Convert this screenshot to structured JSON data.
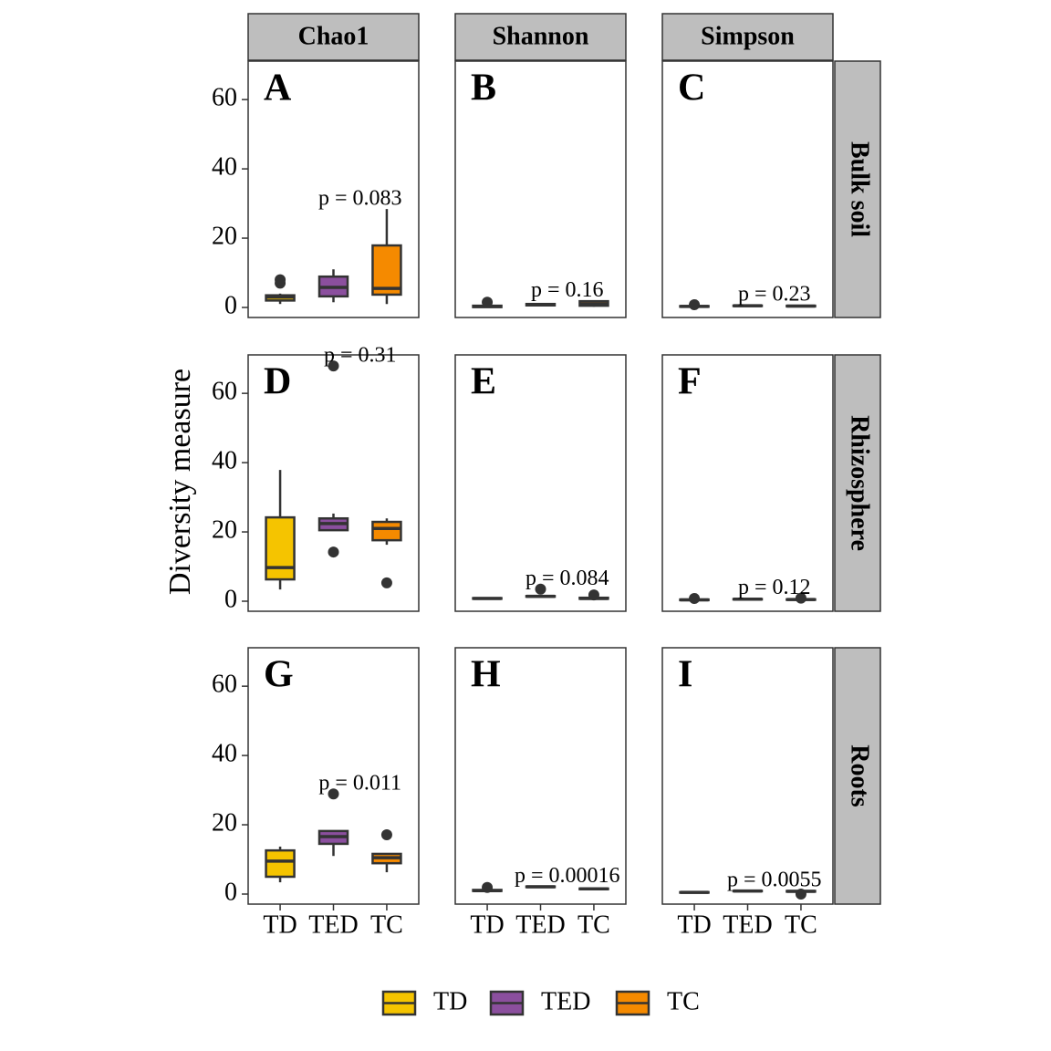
{
  "chart_data": {
    "type": "box",
    "y_label": "Diversity measure",
    "ylim": [
      -2.9,
      71.1
    ],
    "yticks": [
      0,
      20,
      40,
      60
    ],
    "columns": [
      "Chao1",
      "Shannon",
      "Simpson"
    ],
    "rows": [
      "Bulk soil",
      "Rhizosphere",
      "Roots"
    ],
    "series": [
      {
        "name": "TD",
        "color": "#F5C400"
      },
      {
        "name": "TED",
        "color": "#8B4F9E"
      },
      {
        "name": "TC",
        "color": "#F58A00"
      }
    ],
    "panels": [
      {
        "tag": "A",
        "p_label": "p = 0.083",
        "boxes": [
          {
            "low": 1,
            "q1": 2,
            "median": 3,
            "q3": 3.5,
            "high": 4,
            "outliers": [
              7,
              8
            ]
          },
          {
            "low": 1.5,
            "q1": 3.2,
            "median": 5.8,
            "q3": 8.9,
            "high": 11,
            "outliers": []
          },
          {
            "low": 1,
            "q1": 3.7,
            "median": 5.5,
            "q3": 17.9,
            "high": 28.4,
            "outliers": []
          }
        ]
      },
      {
        "tag": "B",
        "p_label": "p = 0.16",
        "boxes": [
          {
            "low": 0,
            "q1": 0.1,
            "median": 0.3,
            "q3": 0.5,
            "high": 0.8,
            "outliers": [
              1.5
            ]
          },
          {
            "low": 0.5,
            "q1": 0.6,
            "median": 0.8,
            "q3": 1.0,
            "high": 1.1,
            "outliers": []
          },
          {
            "low": 0.2,
            "q1": 0.5,
            "median": 1.0,
            "q3": 1.8,
            "high": 2.0,
            "outliers": []
          }
        ]
      },
      {
        "tag": "C",
        "p_label": "p = 0.23",
        "boxes": [
          {
            "low": 0.1,
            "q1": 0.2,
            "median": 0.3,
            "q3": 0.4,
            "high": 0.5,
            "outliers": [
              0.8
            ]
          },
          {
            "low": 0.3,
            "q1": 0.4,
            "median": 0.5,
            "q3": 0.55,
            "high": 0.6,
            "outliers": []
          },
          {
            "low": 0.2,
            "q1": 0.3,
            "median": 0.4,
            "q3": 0.5,
            "high": 0.6,
            "outliers": []
          }
        ]
      },
      {
        "tag": "D",
        "p_label": "p = 0.31",
        "boxes": [
          {
            "low": 3.4,
            "q1": 6.3,
            "median": 9.7,
            "q3": 24.2,
            "high": 37.9,
            "outliers": []
          },
          {
            "low": 20.5,
            "q1": 20.5,
            "median": 22.4,
            "q3": 23.9,
            "high": 25.3,
            "outliers": [
              67.9,
              14.2
            ]
          },
          {
            "low": 16.3,
            "q1": 17.6,
            "median": 21,
            "q3": 22.9,
            "high": 23.9,
            "outliers": [
              5.3
            ]
          }
        ]
      },
      {
        "tag": "E",
        "p_label": "p = 0.084",
        "boxes": [
          {
            "low": 0.6,
            "q1": 0.7,
            "median": 0.8,
            "q3": 0.9,
            "high": 1.0,
            "outliers": []
          },
          {
            "low": 1.1,
            "q1": 1.3,
            "median": 1.4,
            "q3": 1.5,
            "high": 1.7,
            "outliers": [
              3.5
            ]
          },
          {
            "low": 0.5,
            "q1": 0.7,
            "median": 0.8,
            "q3": 1.0,
            "high": 1.2,
            "outliers": [
              1.8
            ]
          }
        ]
      },
      {
        "tag": "F",
        "p_label": "p = 0.12",
        "boxes": [
          {
            "low": 0.2,
            "q1": 0.3,
            "median": 0.4,
            "q3": 0.5,
            "high": 0.6,
            "outliers": [
              0.8
            ]
          },
          {
            "low": 0.4,
            "q1": 0.5,
            "median": 0.6,
            "q3": 0.65,
            "high": 0.7,
            "outliers": []
          },
          {
            "low": 0.3,
            "q1": 0.4,
            "median": 0.5,
            "q3": 0.55,
            "high": 0.6,
            "outliers": [
              0.9
            ]
          }
        ]
      },
      {
        "tag": "G",
        "p_label": "p = 0.011",
        "boxes": [
          {
            "low": 3.4,
            "q1": 5,
            "median": 9.5,
            "q3": 12.6,
            "high": 13.7,
            "outliers": []
          },
          {
            "low": 11,
            "q1": 14.5,
            "median": 16.6,
            "q3": 18.2,
            "high": 18.2,
            "outliers": [
              28.9
            ]
          },
          {
            "low": 6.3,
            "q1": 8.9,
            "median": 10.5,
            "q3": 11.6,
            "high": 11.6,
            "outliers": [
              17.1
            ]
          }
        ]
      },
      {
        "tag": "H",
        "p_label": "p = 0.00016",
        "boxes": [
          {
            "low": 0.8,
            "q1": 0.9,
            "median": 1.0,
            "q3": 1.2,
            "high": 1.3,
            "outliers": [
              1.9
            ]
          },
          {
            "low": 1.9,
            "q1": 2.0,
            "median": 2.1,
            "q3": 2.2,
            "high": 2.3,
            "outliers": []
          },
          {
            "low": 1.3,
            "q1": 1.4,
            "median": 1.5,
            "q3": 1.6,
            "high": 1.7,
            "outliers": []
          }
        ]
      },
      {
        "tag": "I",
        "p_label": "p = 0.0055",
        "boxes": [
          {
            "low": 0.3,
            "q1": 0.4,
            "median": 0.5,
            "q3": 0.55,
            "high": 0.6,
            "outliers": []
          },
          {
            "low": 0.7,
            "q1": 0.8,
            "median": 0.9,
            "q3": 0.95,
            "high": 1.0,
            "outliers": []
          },
          {
            "low": 0.6,
            "q1": 0.7,
            "median": 0.8,
            "q3": 0.9,
            "high": 1.0,
            "outliers": [
              0
            ]
          }
        ]
      }
    ]
  }
}
